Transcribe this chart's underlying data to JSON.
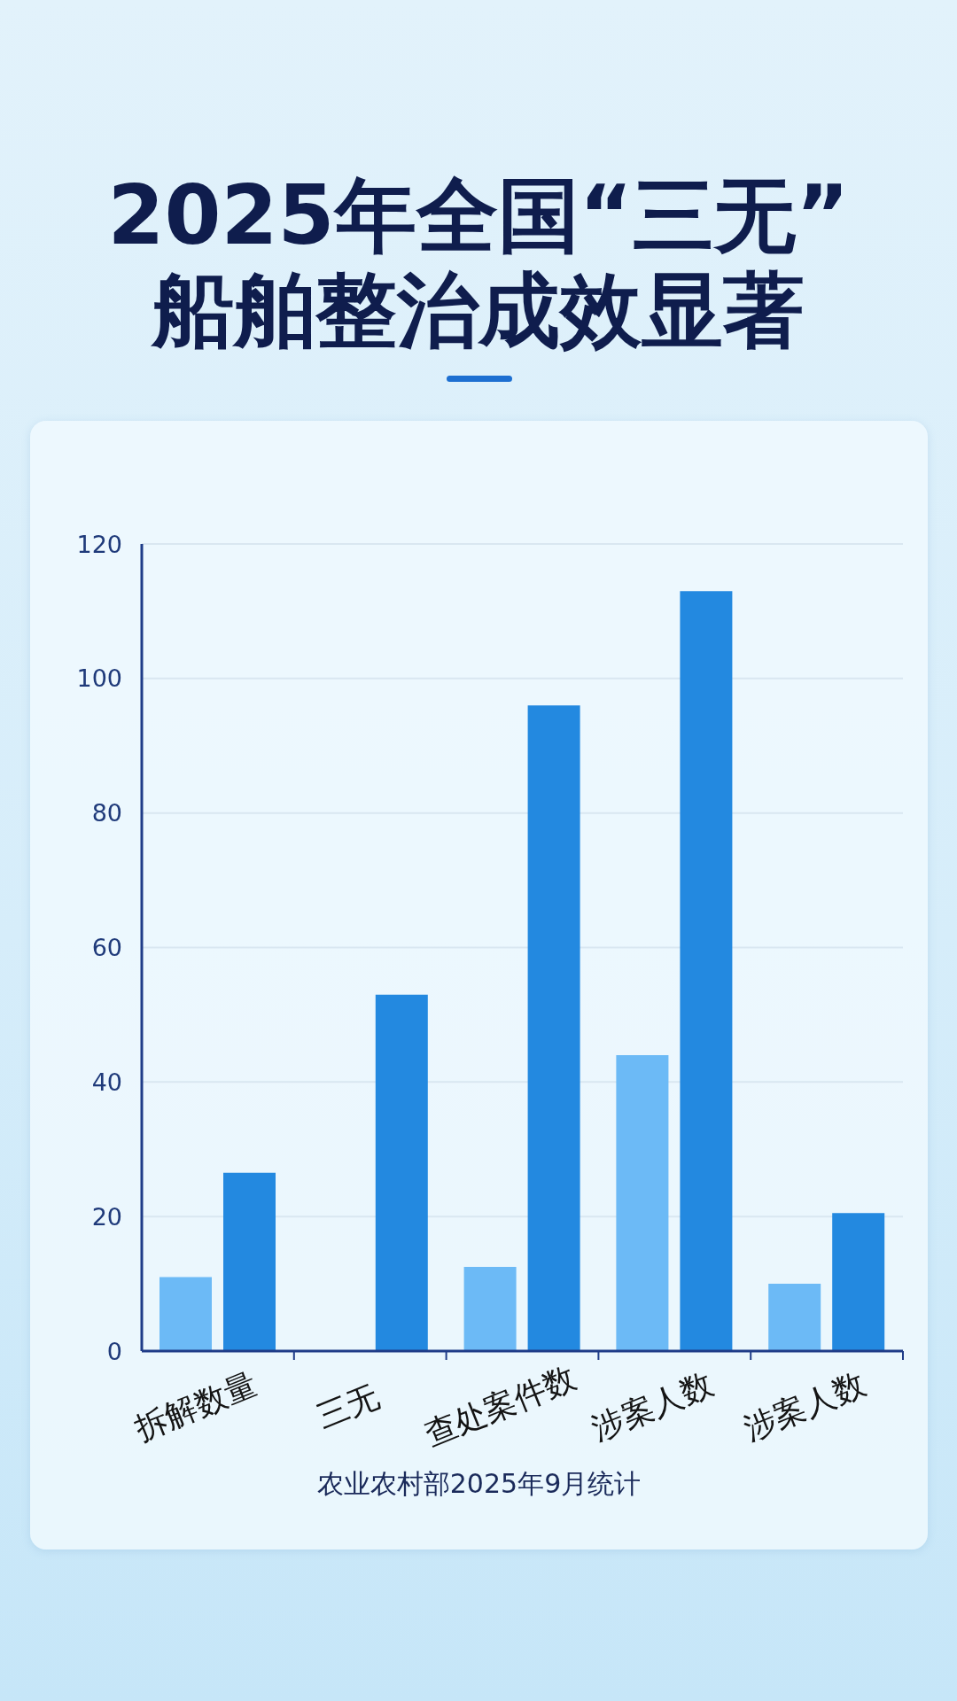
{
  "chart_data": {
    "type": "bar",
    "title": "2025年全国“三无”\n船舶整治成效显著",
    "categories": [
      "拆解数量",
      "三无",
      "查处案件数",
      "涉案人数",
      "涉案人数"
    ],
    "series": [
      {
        "color": "#6cbaf6",
        "values": [
          11,
          null,
          12.5,
          44,
          10
        ]
      },
      {
        "color": "#2389e0",
        "values": [
          26.5,
          53,
          96,
          113,
          20.5
        ]
      }
    ],
    "ylim": [
      0,
      120
    ],
    "yticks": [
      0,
      20,
      40,
      60,
      80,
      100,
      120
    ],
    "grid": "y",
    "annotations": [
      "农业农村部2025年9月统计"
    ]
  }
}
